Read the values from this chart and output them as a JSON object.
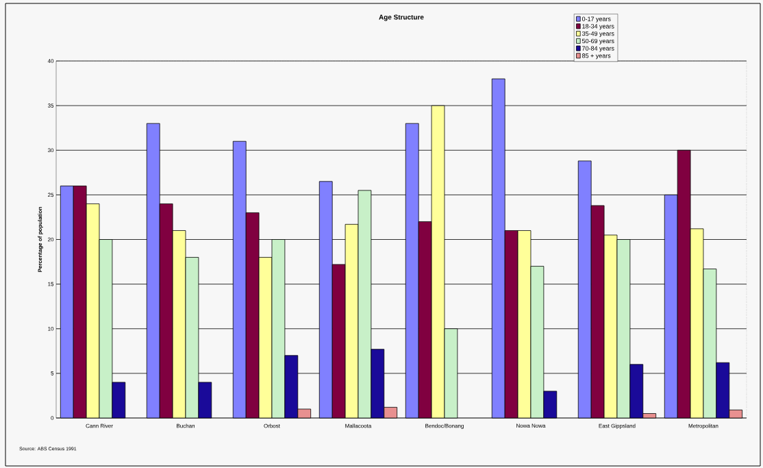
{
  "chart_data": {
    "type": "bar",
    "title": "Age Structure",
    "ylabel": "Percentage of population",
    "categories": [
      "Cann River",
      "Buchan",
      "Orbost",
      "Mallacoota",
      "Bendoc/Bonang",
      "Nowa Nowa",
      "East Gippsland",
      "Metropolitan"
    ],
    "series": [
      {
        "name": "0-17 years",
        "color": "#8080ff",
        "values": [
          26,
          33,
          31,
          26.5,
          33,
          38,
          28.8,
          25
        ]
      },
      {
        "name": "18-34 years",
        "color": "#800040",
        "values": [
          26,
          24,
          23,
          17.2,
          22,
          21,
          23.8,
          30
        ]
      },
      {
        "name": "35-49 years",
        "color": "#ffff99",
        "values": [
          24,
          21,
          18,
          21.7,
          35,
          21,
          20.5,
          21.2
        ]
      },
      {
        "name": "50-69 years",
        "color": "#c8f0c8",
        "values": [
          20,
          18,
          20,
          25.5,
          10,
          17,
          20,
          16.7
        ]
      },
      {
        "name": "70-84 years",
        "color": "#1a0a99",
        "values": [
          4,
          4,
          7,
          7.7,
          null,
          3,
          6,
          6.2
        ]
      },
      {
        "name": "85 + years",
        "color": "#e89090",
        "values": [
          null,
          null,
          1,
          1.2,
          null,
          null,
          0.5,
          0.9
        ]
      }
    ],
    "ylim": [
      0,
      40
    ],
    "yticks": [
      0,
      5,
      10,
      15,
      20,
      25,
      30,
      35,
      40
    ],
    "grid": "y",
    "legend": "top right",
    "annotations": [
      "Source: ABS Census 1991"
    ]
  }
}
